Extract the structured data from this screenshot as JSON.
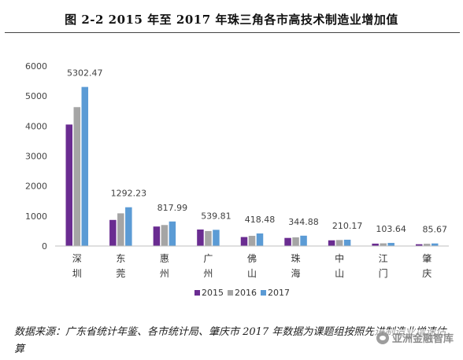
{
  "chart_data": {
    "type": "bar",
    "title": "图 2-2    2015 年至 2017 年珠三角各市高技术制造业增加值",
    "categories": [
      "深圳",
      "东莞",
      "惠州",
      "广州",
      "佛山",
      "珠海",
      "中山",
      "江门",
      "肇庆"
    ],
    "series": [
      {
        "name": "2015",
        "color": "#6a2c91",
        "values": [
          4050,
          870,
          650,
          550,
          300,
          270,
          190,
          80,
          60
        ]
      },
      {
        "name": "2016",
        "color": "#a5a5a5",
        "values": [
          4630,
          1090,
          700,
          500,
          340,
          290,
          200,
          90,
          75
        ]
      },
      {
        "name": "2017",
        "color": "#5b9bd5",
        "values": [
          5302.47,
          1292.23,
          817.99,
          539.81,
          418.48,
          344.88,
          210.17,
          103.64,
          85.67
        ]
      }
    ],
    "data_labels": [
      "5302.47",
      "1292.23",
      "817.99",
      "539.81",
      "418.48",
      "344.88",
      "210.17",
      "103.64",
      "85.67"
    ],
    "ylim": [
      0,
      6000
    ],
    "yticks": [
      0,
      1000,
      2000,
      3000,
      4000,
      5000,
      6000
    ],
    "xlabel": "",
    "ylabel": "",
    "legend_position": "bottom",
    "grid": false
  },
  "source_note": "数据来源：广东省统计年鉴、各市统计局、肇庆市 2017 年数据为课题组按照先进制造业增速估算",
  "watermark": "亚洲金融智库"
}
